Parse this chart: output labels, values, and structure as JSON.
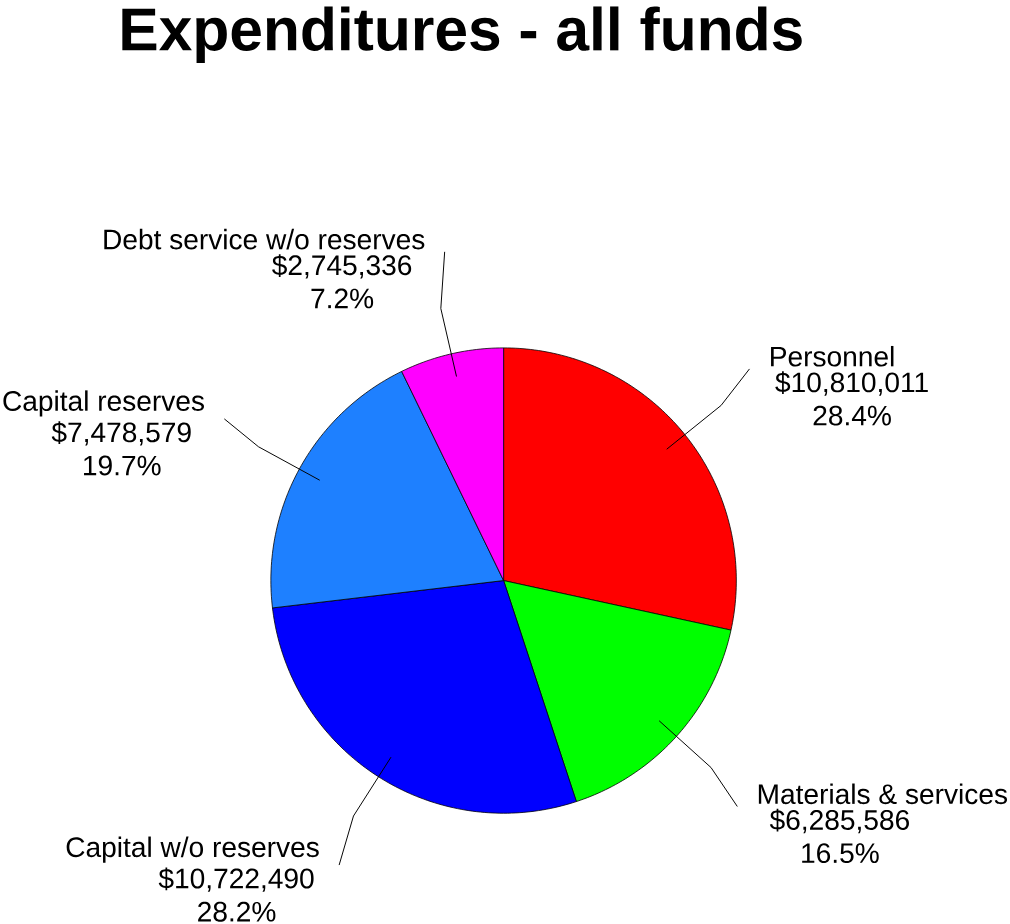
{
  "chart_data": {
    "type": "pie",
    "title": "Expenditures - all funds",
    "categories": [
      "Personnel",
      "Materials & services",
      "Capital w/o reserves",
      "Capital reserves",
      "Debt service w/o reserves"
    ],
    "values": [
      10810011,
      6285586,
      10722490,
      7478579,
      2745336
    ],
    "colors": [
      "#ff0000",
      "#00ff00",
      "#0000ff",
      "#1e80ff",
      "#ff00ff"
    ],
    "value_labels": [
      "$10,810,011 28.4%",
      "$6,285,586 16.5%",
      "$10,722,490 28.2%",
      "$7,478,579 19.7%",
      "$2,745,336 7.2%"
    ]
  }
}
